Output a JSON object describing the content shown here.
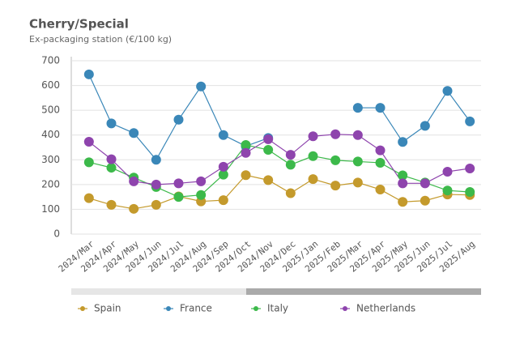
{
  "chart_data": {
    "type": "line",
    "title": "Cherry/Special",
    "subtitle": "Ex-packaging station (€/100 kg)",
    "categories": [
      "2024/Mar",
      "2024/Apr",
      "2024/May",
      "2024/Jun",
      "2024/Jul",
      "2024/Aug",
      "2024/Sep",
      "2024/Oct",
      "2024/Nov",
      "2024/Dec",
      "2025/Jan",
      "2025/Feb",
      "2025/Mar",
      "2025/Apr",
      "2025/May",
      "2025/Jun",
      "2025/Jul",
      "2025/Aug"
    ],
    "series": [
      {
        "name": "Spain",
        "color": "#c49a2c",
        "values": [
          145,
          118,
          102,
          118,
          152,
          132,
          137,
          238,
          218,
          165,
          222,
          196,
          208,
          180,
          130,
          135,
          160,
          158
        ]
      },
      {
        "name": "France",
        "color": "#3a87b8",
        "values": [
          645,
          447,
          408,
          300,
          462,
          596,
          400,
          355,
          388,
          null,
          null,
          null,
          510,
          510,
          372,
          437,
          578,
          455
        ]
      },
      {
        "name": "Italy",
        "color": "#3cb94a",
        "values": [
          290,
          268,
          228,
          190,
          150,
          158,
          240,
          360,
          340,
          280,
          315,
          298,
          293,
          288,
          237,
          208,
          176,
          170
        ]
      },
      {
        "name": "Netherlands",
        "color": "#8e44ad",
        "values": [
          373,
          302,
          213,
          200,
          205,
          213,
          272,
          328,
          383,
          320,
          395,
          403,
          400,
          338,
          205,
          205,
          252,
          265
        ]
      }
    ],
    "ylim": [
      0,
      700
    ],
    "yticks": [
      0,
      100,
      200,
      300,
      400,
      500,
      600,
      700
    ],
    "grid": true
  }
}
